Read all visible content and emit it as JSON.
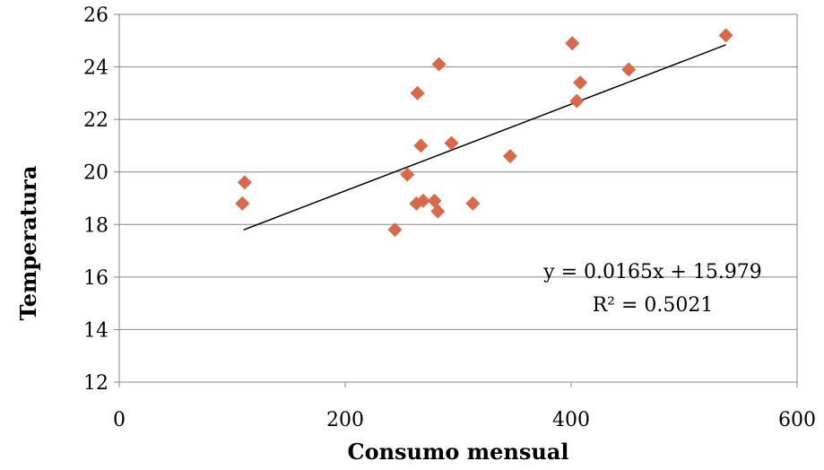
{
  "chart_data": {
    "type": "scatter",
    "xlabel": "Consumo mensual",
    "ylabel": "Temperatura",
    "xlim": [
      0,
      600
    ],
    "ylim": [
      12,
      26
    ],
    "xticks": [
      0,
      200,
      400,
      600
    ],
    "yticks": [
      12,
      14,
      16,
      18,
      20,
      22,
      24,
      26
    ],
    "grid": "horizontal",
    "marker_color": "#D8694A",
    "points": [
      [
        109,
        18.8
      ],
      [
        111,
        19.6
      ],
      [
        244,
        17.8
      ],
      [
        255,
        19.9
      ],
      [
        263,
        18.8
      ],
      [
        264,
        23.0
      ],
      [
        267,
        21.0
      ],
      [
        269,
        18.9
      ],
      [
        279,
        18.9
      ],
      [
        282,
        18.5
      ],
      [
        283,
        24.1
      ],
      [
        294,
        21.1
      ],
      [
        313,
        18.8
      ],
      [
        346,
        20.6
      ],
      [
        401,
        24.9
      ],
      [
        405,
        22.7
      ],
      [
        408,
        23.4
      ],
      [
        451,
        23.9
      ],
      [
        537,
        25.2
      ]
    ],
    "trendline": {
      "slope": 0.0165,
      "intercept": 15.979,
      "x_range": [
        110,
        537
      ],
      "equation_label": "y = 0.0165x + 15.979",
      "r2_label": "R² = 0.5021"
    }
  }
}
